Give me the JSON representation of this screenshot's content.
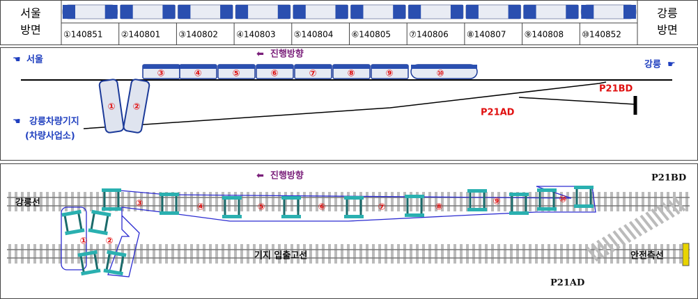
{
  "header": {
    "left": [
      "서울",
      "방면"
    ],
    "right": [
      "강릉",
      "방면"
    ],
    "cars": [
      "①140851",
      "②140801",
      "③140802",
      "④140803",
      "⑤140804",
      "⑥140805",
      "⑦140806",
      "⑧140807",
      "⑨140808",
      "⑩140852"
    ]
  },
  "overview": {
    "left_label": "서울",
    "direction": "진행방향",
    "right_label": "강릉",
    "depot": [
      "강릉차량기지",
      "(차량사업소)"
    ],
    "points": [
      "P21BD",
      "P21AD"
    ],
    "car_numbers": [
      "①",
      "②",
      "③",
      "④",
      "⑤",
      "⑥",
      "⑦",
      "⑧",
      "⑨",
      "⑩"
    ]
  },
  "track_plan": {
    "direction": "진행방향",
    "main_line": "강릉선",
    "depot_line": "기지 입출고선",
    "safety_siding": "안전측선",
    "points": [
      "P21BD",
      "P21AD"
    ],
    "car_numbers": [
      "①",
      "②",
      "③",
      "④",
      "⑤",
      "⑥",
      "⑦",
      "⑧",
      "⑨",
      "⑩"
    ]
  }
}
